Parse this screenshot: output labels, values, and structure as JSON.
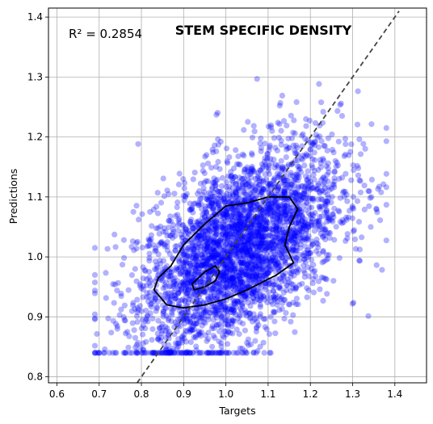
{
  "chart_data": {
    "type": "scatter",
    "title": "STEM SPECIFIC DENSITY",
    "annotation": "R² = 0.2854",
    "xlabel": "Targets",
    "ylabel": "Predictions",
    "xlim": [
      0.58,
      1.475
    ],
    "ylim": [
      0.79,
      1.415
    ],
    "xticks": [
      "0.6",
      "0.7",
      "0.8",
      "0.9",
      "1.0",
      "1.1",
      "1.2",
      "1.3",
      "1.4"
    ],
    "yticks": [
      "0.8",
      "0.9",
      "1.0",
      "1.1",
      "1.2",
      "1.3",
      "1.4"
    ],
    "grid": true,
    "reference_line": {
      "style": "dashed",
      "color": "#444444",
      "x": [
        0.79,
        1.41
      ],
      "y": [
        0.79,
        1.41
      ]
    },
    "points": {
      "color": "#0000ff",
      "count": 3500,
      "center": [
        1.03,
        1.02
      ],
      "x_range": [
        0.69,
        1.38
      ],
      "y_range": [
        0.84,
        1.35
      ]
    },
    "contours": [
      {
        "color": "#000000",
        "x": [
          0.87,
          0.9,
          0.95,
          1.0,
          1.05,
          1.1,
          1.15,
          1.17,
          1.15,
          1.14,
          1.16,
          1.12,
          1.05,
          1.0,
          0.95,
          0.9,
          0.86,
          0.83,
          0.84,
          0.87
        ],
        "y": [
          0.985,
          1.02,
          1.055,
          1.085,
          1.09,
          1.1,
          1.1,
          1.08,
          1.05,
          1.02,
          0.99,
          0.97,
          0.945,
          0.93,
          0.92,
          0.915,
          0.92,
          0.945,
          0.965,
          0.985
        ]
      },
      {
        "color": "#000000",
        "x": [
          0.92,
          0.95,
          0.975,
          0.985,
          0.975,
          0.95,
          0.925,
          0.92
        ],
        "y": [
          0.955,
          0.975,
          0.985,
          0.975,
          0.96,
          0.95,
          0.945,
          0.955
        ]
      }
    ]
  }
}
